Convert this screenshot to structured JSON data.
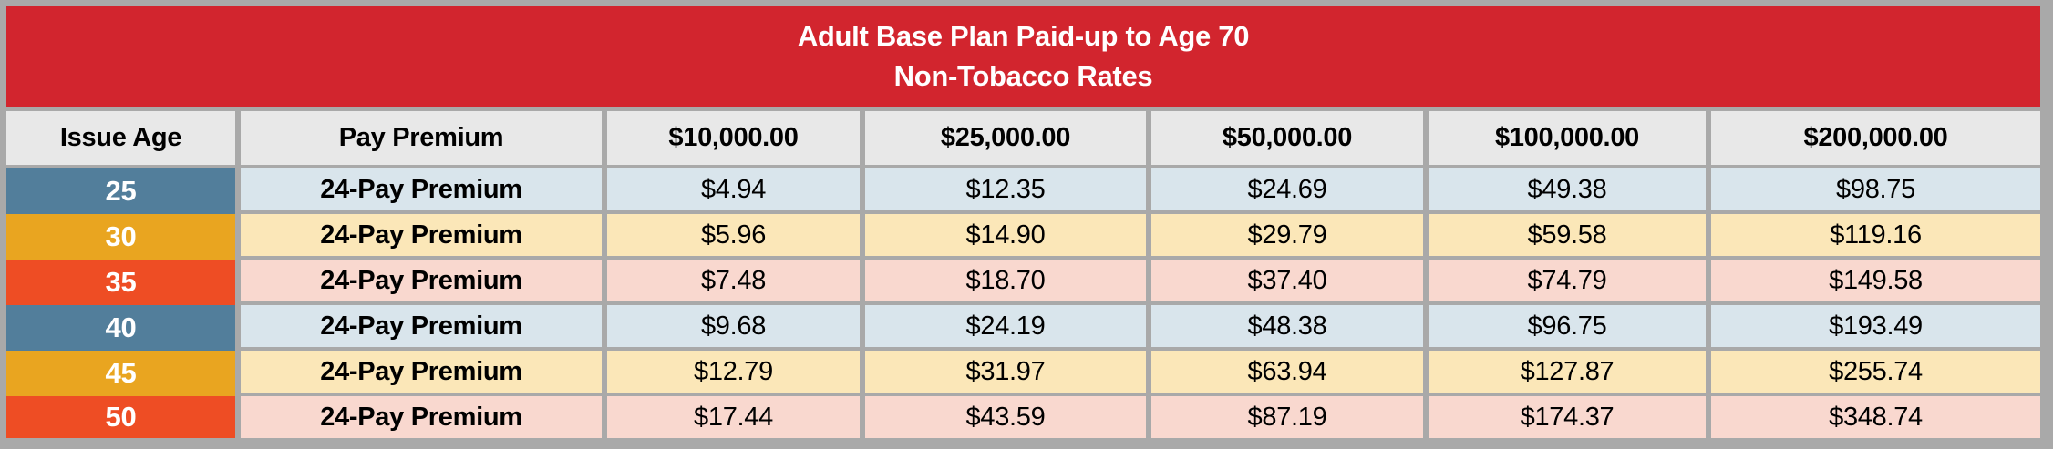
{
  "chart_data": {
    "type": "table",
    "title": "Adult Base Plan Paid-up to Age 70",
    "subtitle": "Non-Tobacco Rates",
    "columns": [
      "Issue Age",
      "Pay Premium",
      "$10,000.00",
      "$25,000.00",
      "$50,000.00",
      "$100,000.00",
      "$200,000.00"
    ],
    "rows": [
      {
        "issue_age": "25",
        "pay_premium": "24-Pay Premium",
        "rates": [
          "$4.94",
          "$12.35",
          "$24.69",
          "$49.38",
          "$98.75"
        ]
      },
      {
        "issue_age": "30",
        "pay_premium": "24-Pay Premium",
        "rates": [
          "$5.96",
          "$14.90",
          "$29.79",
          "$59.58",
          "$119.16"
        ]
      },
      {
        "issue_age": "35",
        "pay_premium": "24-Pay Premium",
        "rates": [
          "$7.48",
          "$18.70",
          "$37.40",
          "$74.79",
          "$149.58"
        ]
      },
      {
        "issue_age": "40",
        "pay_premium": "24-Pay Premium",
        "rates": [
          "$9.68",
          "$24.19",
          "$48.38",
          "$96.75",
          "$193.49"
        ]
      },
      {
        "issue_age": "45",
        "pay_premium": "24-Pay Premium",
        "rates": [
          "$12.79",
          "$31.97",
          "$63.94",
          "$127.87",
          "$255.74"
        ]
      },
      {
        "issue_age": "50",
        "pay_premium": "24-Pay Premium",
        "rates": [
          "$17.44",
          "$43.59",
          "$87.19",
          "$174.37",
          "$348.74"
        ]
      }
    ],
    "layout_hints": {
      "title_band": "red banner, white bold text, two centered lines",
      "age_color_cycle": [
        "slate-blue",
        "amber",
        "orange-red"
      ],
      "row_tint_cycle": [
        "light-blue",
        "light-yellow",
        "light-pink"
      ],
      "grid": "gray gutters between all cells except between stacked issue-age cells"
    }
  },
  "colors": {
    "title_band_bg": "#d2252e",
    "title_text": "#ffffff",
    "column_header_bg": "#e8e8e8",
    "frame_and_gridline_gray": "#a9a9a9",
    "age_cell_blue": "#527e9b",
    "age_cell_amber": "#e9a520",
    "age_cell_orange": "#ee4d24",
    "row_tint_blue": "#d9e5ec",
    "row_tint_yellow": "#fbe7b8",
    "row_tint_pink": "#f9d8cf",
    "body_text": "#000000"
  }
}
